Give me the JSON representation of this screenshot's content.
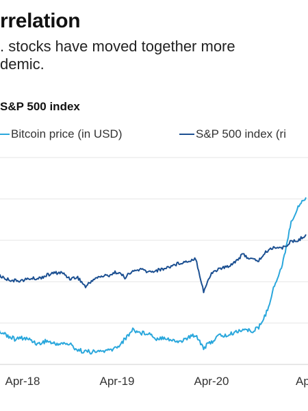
{
  "header": {
    "title": "rrelation",
    "subtitle": ". stocks have moved together more\ndemic."
  },
  "chart_data": {
    "type": "line",
    "title": "S&P 500 index",
    "xlabel": "",
    "ylabel": "",
    "grid": true,
    "legend_position": "top",
    "x_ticks": [
      "Apr-18",
      "Apr-19",
      "Apr-20",
      "Ap"
    ],
    "series": [
      {
        "name": "Bitcoin price (in USD)",
        "color": "#2aa7dc",
        "x": [
          "2017-11",
          "2017-12",
          "2018-01",
          "2018-02",
          "2018-03",
          "2018-04",
          "2018-05",
          "2018-06",
          "2018-07",
          "2018-08",
          "2018-09",
          "2018-10",
          "2018-11",
          "2018-12",
          "2019-01",
          "2019-02",
          "2019-03",
          "2019-04",
          "2019-05",
          "2019-06",
          "2019-07",
          "2019-08",
          "2019-09",
          "2019-10",
          "2019-11",
          "2019-12",
          "2020-01",
          "2020-02",
          "2020-03",
          "2020-04",
          "2020-05",
          "2020-06",
          "2020-07",
          "2020-08",
          "2020-09",
          "2020-10",
          "2020-11",
          "2020-12",
          "2021-01",
          "2021-02",
          "2021-03",
          "2021-04"
        ],
        "values": [
          7500,
          13500,
          11000,
          9500,
          8000,
          8500,
          7800,
          6300,
          7500,
          6400,
          6500,
          6300,
          4200,
          3700,
          3500,
          3800,
          4000,
          5200,
          8000,
          11500,
          10200,
          10300,
          8200,
          8800,
          7500,
          7200,
          8500,
          9700,
          5000,
          7100,
          9400,
          9200,
          10500,
          11600,
          10800,
          12000,
          17500,
          27000,
          34000,
          48000,
          55000,
          58000
        ]
      },
      {
        "name": "S&P 500 index (ri",
        "color": "#1b4f91",
        "x": [
          "2017-11",
          "2017-12",
          "2018-01",
          "2018-02",
          "2018-03",
          "2018-04",
          "2018-05",
          "2018-06",
          "2018-07",
          "2018-08",
          "2018-09",
          "2018-10",
          "2018-11",
          "2018-12",
          "2019-01",
          "2019-02",
          "2019-03",
          "2019-04",
          "2019-05",
          "2019-06",
          "2019-07",
          "2019-08",
          "2019-09",
          "2019-10",
          "2019-11",
          "2019-12",
          "2020-01",
          "2020-02",
          "2020-03",
          "2020-04",
          "2020-05",
          "2020-06",
          "2020-07",
          "2020-08",
          "2020-09",
          "2020-10",
          "2020-11",
          "2020-12",
          "2021-01",
          "2021-02",
          "2021-03",
          "2021-04"
        ],
        "values": [
          2600,
          2680,
          2820,
          2700,
          2650,
          2660,
          2720,
          2720,
          2820,
          2900,
          2910,
          2720,
          2760,
          2450,
          2700,
          2790,
          2830,
          2940,
          2760,
          2950,
          3020,
          2930,
          2980,
          3040,
          3140,
          3230,
          3280,
          3380,
          2300,
          2900,
          3040,
          3100,
          3270,
          3500,
          3350,
          3300,
          3600,
          3750,
          3700,
          3900,
          3950,
          4150
        ]
      }
    ]
  }
}
